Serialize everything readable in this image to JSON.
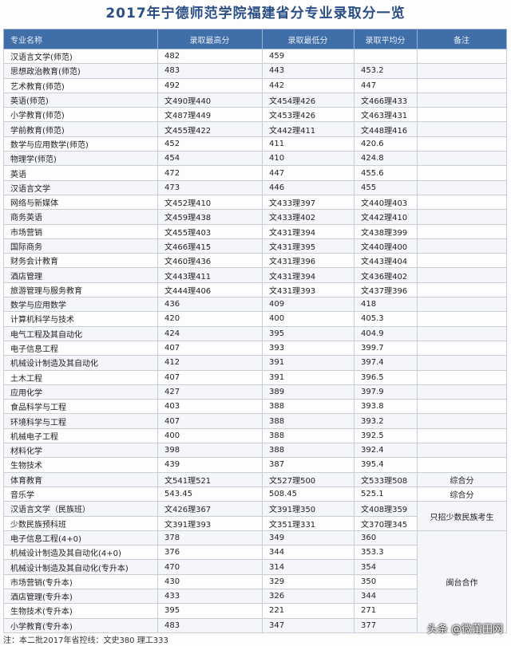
{
  "title": "2017年宁德师范学院福建省分专业录取分一览",
  "table": {
    "header": [
      "专业名称",
      "录取最高分",
      "录取最低分",
      "录取平均分",
      "备注"
    ],
    "rows": [
      [
        "汉语言文学(师范)",
        "482",
        "459",
        null,
        null
      ],
      [
        "思想政治教育(师范)",
        "483",
        "443",
        "453.2",
        null
      ],
      [
        "艺术教育(师范)",
        "492",
        "442",
        "447",
        null
      ],
      [
        "英语(师范)",
        "文490理440",
        "文454理426",
        "文466理433",
        null
      ],
      [
        "小学教育(师范)",
        "文487理449",
        "文453理426",
        "文463理431",
        null
      ],
      [
        "学前教育(师范)",
        "文455理422",
        "文442理411",
        "文448理416",
        null
      ],
      [
        "数学与应用数学(师范)",
        "452",
        "411",
        "420.6",
        null
      ],
      [
        "物理学(师范)",
        "454",
        "410",
        "424.8",
        null
      ],
      [
        "英语",
        "472",
        "447",
        "455.6",
        null
      ],
      [
        "汉语言文学",
        "473",
        "446",
        "455",
        null
      ],
      [
        "网络与新媒体",
        "文452理410",
        "文433理397",
        "文440理403",
        null
      ],
      [
        "商务英语",
        "文459理438",
        "文433理402",
        "文442理410",
        null
      ],
      [
        "市场营销",
        "文455理403",
        "文431理394",
        "文438理399",
        null
      ],
      [
        "国际商务",
        "文466理415",
        "文431理395",
        "文440理400",
        null
      ],
      [
        "财务会计教育",
        "文460理436",
        "文431理396",
        "文443理404",
        null
      ],
      [
        "酒店管理",
        "文443理411",
        "文431理394",
        "文436理402",
        null
      ],
      [
        "旅游管理与服务教育",
        "文444理406",
        "文431理393",
        "文437理396",
        null
      ],
      [
        "数学与应用数学",
        "436",
        "409",
        "418",
        null
      ],
      [
        "计算机科学与技术",
        "420",
        "400",
        "405.3",
        null
      ],
      [
        "电气工程及其自动化",
        "424",
        "395",
        "404.9",
        null
      ],
      [
        "电子信息工程",
        "407",
        "393",
        "399.7",
        null
      ],
      [
        "机械设计制造及其自动化",
        "412",
        "391",
        "397.4",
        null
      ],
      [
        "土木工程",
        "407",
        "391",
        "396.5",
        null
      ],
      [
        "应用化学",
        "427",
        "389",
        "397.9",
        null
      ],
      [
        "食品科学与工程",
        "403",
        "388",
        "393.8",
        null
      ],
      [
        "环境科学与工程",
        "407",
        "388",
        "393.2",
        null
      ],
      [
        "机械电子工程",
        "400",
        "388",
        "392.5",
        null
      ],
      [
        "材料化学",
        "398",
        "388",
        "392.4",
        null
      ],
      [
        "生物技术",
        "439",
        "387",
        "395.4",
        null
      ],
      [
        "体育教育",
        "文541理521",
        "文527理500",
        "文533理508",
        "综合分"
      ],
      [
        "音乐学",
        "543.45",
        "508.45",
        "525.1",
        "综合分"
      ],
      [
        "汉语言文学（民族班）",
        "文426理367",
        "文391理350",
        "文408理359",
        "只招少数民族考生"
      ],
      [
        "少数民族预科班",
        "文391理393",
        "文351理331",
        "文370理345",
        null
      ],
      [
        "电子信息工程(4+0)",
        "378",
        "349",
        "360",
        "闽台合作"
      ],
      [
        "机械设计制造及其自动化(4+0)",
        "376",
        "344",
        "353.3",
        null
      ],
      [
        "机械设计制造及其自动化(专升本)",
        "470",
        "314",
        "354",
        null
      ],
      [
        "市场营销(专升本)",
        "430",
        "329",
        "350",
        null
      ],
      [
        "酒店管理(专升本)",
        "433",
        "326",
        "344",
        null
      ],
      [
        "生物技术(专升本)",
        "395",
        "221",
        "271",
        null
      ],
      [
        "小学教育(专升本)",
        "483",
        "347",
        "377",
        null
      ]
    ]
  },
  "note": "注：本二批2017年省控线：文史380  理工333",
  "watermark": "头条 @微莆田网"
}
